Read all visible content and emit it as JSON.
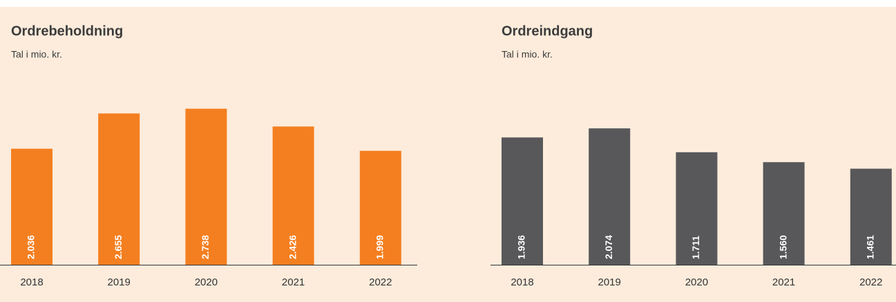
{
  "chart_data": [
    {
      "type": "bar",
      "title": "Ordrebeholdning",
      "subtitle": "Tal i mio. kr.",
      "categories": [
        "2018",
        "2019",
        "2020",
        "2021",
        "2022"
      ],
      "values": [
        2036,
        2655,
        2738,
        2426,
        1999
      ],
      "value_labels": [
        "2.036",
        "2.655",
        "2.738",
        "2.426",
        "1.999"
      ],
      "color": "#f47f20",
      "ylim": [
        0,
        3000
      ]
    },
    {
      "type": "bar",
      "title": "Ordreindgang",
      "subtitle": "Tal i mio. kr.",
      "categories": [
        "2018",
        "2019",
        "2020",
        "2021",
        "2022"
      ],
      "values": [
        1936,
        2074,
        1711,
        1560,
        1461
      ],
      "value_labels": [
        "1.936",
        "2.074",
        "1.711",
        "1.560",
        "1.461"
      ],
      "color": "#58585a",
      "ylim": [
        0,
        2600
      ]
    }
  ]
}
